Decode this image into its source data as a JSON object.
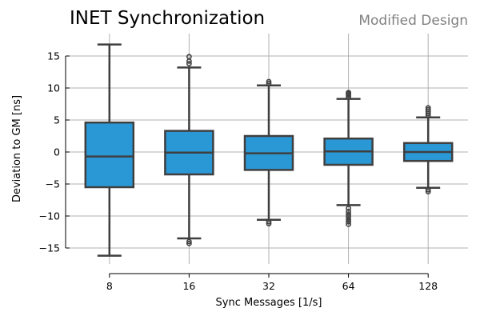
{
  "chart_data": {
    "type": "boxplot",
    "title": "INET Synchronization",
    "subtitle": "Modified Design",
    "xlabel": "Sync Messages [1/s]",
    "ylabel": "Deviation to GM [ns]",
    "categories": [
      "8",
      "16",
      "32",
      "64",
      "128"
    ],
    "ylim": [
      -17.5,
      18.5
    ],
    "yticks": [
      -15,
      -10,
      -5,
      0,
      5,
      10,
      15
    ],
    "ytick_labels": [
      "−15",
      "−10",
      "−5",
      "0",
      "5",
      "10",
      "15"
    ],
    "grid": true,
    "box_color": "#2b98d6",
    "line_color": "#3f3f3f",
    "grid_color": "#b0b0b0",
    "boxes": [
      {
        "category": "8",
        "whisker_low": -16.2,
        "q1": -5.5,
        "median": -0.7,
        "q3": 4.6,
        "whisker_high": 16.8,
        "outliers": []
      },
      {
        "category": "16",
        "whisker_low": -13.5,
        "q1": -3.5,
        "median": -0.1,
        "q3": 3.3,
        "whisker_high": 13.2,
        "outliers": [
          -14.0,
          -14.3,
          13.8,
          14.2,
          14.9
        ]
      },
      {
        "category": "32",
        "whisker_low": -10.6,
        "q1": -2.8,
        "median": -0.2,
        "q3": 2.5,
        "whisker_high": 10.4,
        "outliers": [
          -10.9,
          -11.2,
          10.7,
          11.0
        ]
      },
      {
        "category": "64",
        "whisker_low": -8.3,
        "q1": -2.0,
        "median": 0.1,
        "q3": 2.1,
        "whisker_high": 8.3,
        "outliers": [
          -8.8,
          -9.3,
          -9.7,
          -10.1,
          -10.5,
          -10.9,
          -11.3,
          8.6,
          8.9,
          9.1,
          9.3
        ]
      },
      {
        "category": "128",
        "whisker_low": -5.6,
        "q1": -1.4,
        "median": 0.0,
        "q3": 1.4,
        "whisker_high": 5.4,
        "outliers": [
          -5.9,
          -6.2,
          5.7,
          6.0,
          6.3,
          6.6,
          6.9
        ]
      }
    ]
  }
}
